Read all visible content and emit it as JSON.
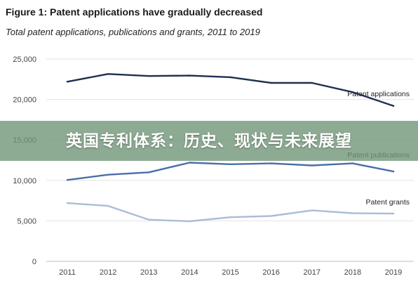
{
  "figure": {
    "title": "Figure 1: Patent applications have gradually decreased",
    "subtitle": "Total patent applications, publications and grants, 2011 to 2019"
  },
  "banner": {
    "text": "英国专利体系：历史、现状与未来展望"
  },
  "chart_data": {
    "type": "line",
    "title": "Figure 1: Patent applications have gradually decreased",
    "subtitle": "Total patent applications, publications and grants, 2011 to 2019",
    "x": [
      "2011",
      "2012",
      "2013",
      "2014",
      "2015",
      "2016",
      "2017",
      "2018",
      "2019"
    ],
    "ylim": [
      0,
      25000
    ],
    "yticks": [
      0,
      5000,
      10000,
      15000,
      20000,
      25000
    ],
    "ytick_labels": [
      "0",
      "5,000",
      "10,000",
      "15,000",
      "20,000",
      "25,000"
    ],
    "grid": true,
    "legend": "inline labels at right end of each line",
    "series": [
      {
        "name": "Patent applications",
        "color": "#1f3050",
        "values": [
          22200,
          23150,
          22900,
          22950,
          22750,
          22050,
          22050,
          20900,
          19200
        ]
      },
      {
        "name": "Patent publications",
        "color": "#4a6fa8",
        "values": [
          10050,
          10700,
          11000,
          12200,
          12000,
          12100,
          11850,
          12100,
          11100
        ]
      },
      {
        "name": "Patent grants",
        "color": "#a9bdd8",
        "values": [
          7200,
          6850,
          5150,
          4950,
          5450,
          5600,
          6300,
          5950,
          5900
        ]
      }
    ]
  }
}
